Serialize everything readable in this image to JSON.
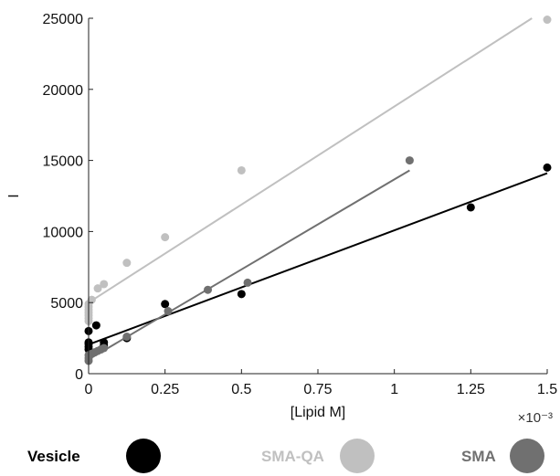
{
  "chart_data": {
    "type": "scatter",
    "xlabel": "[Lipid M]",
    "ylabel": "I",
    "x_multiplier": "×10⁻³",
    "xlim": [
      0,
      1.5
    ],
    "ylim": [
      0,
      25000
    ],
    "x_ticks": [
      "0",
      "0.25",
      "0.5",
      "0.75",
      "1",
      "1.25",
      "1.5"
    ],
    "y_ticks": [
      "0",
      "5000",
      "10000",
      "15000",
      "20000",
      "25000"
    ],
    "grid": false,
    "legend_position": "bottom",
    "series": [
      {
        "name": "Vesicle",
        "color": "#000000",
        "x": [
          0.0,
          0.0,
          0.0,
          0.0,
          0.0,
          0.025,
          0.05,
          0.05,
          0.125,
          0.25,
          0.5,
          1.25,
          1.5
        ],
        "y": [
          1700,
          1900,
          2100,
          2200,
          3000,
          3400,
          2000,
          2200,
          2500,
          4900,
          5600,
          11700,
          14500
        ],
        "fit": [
          [
            0,
            2050
          ],
          [
            1.5,
            14100
          ]
        ]
      },
      {
        "name": "SMA-QA",
        "color": "#c0c0c0",
        "x": [
          0.0,
          0.0,
          0.0,
          0.0,
          0.0,
          0.0,
          0.0,
          0.01,
          0.03,
          0.05,
          0.125,
          0.25,
          0.5,
          1.5
        ],
        "y": [
          3700,
          3900,
          4100,
          4300,
          4500,
          4700,
          4900,
          5200,
          6000,
          6300,
          7800,
          9600,
          14300,
          24900
        ],
        "fit": [
          [
            0,
            5000
          ],
          [
            1.45,
            25000
          ]
        ]
      },
      {
        "name": "SMA",
        "color": "#707070",
        "x": [
          0.0,
          0.0,
          0.0,
          0.01,
          0.02,
          0.03,
          0.04,
          0.05,
          0.125,
          0.26,
          0.39,
          0.52,
          1.05
        ],
        "y": [
          900,
          1100,
          1300,
          1400,
          1500,
          1600,
          1700,
          1800,
          2600,
          4400,
          5900,
          6400,
          15000
        ],
        "fit": [
          [
            0,
            1000
          ],
          [
            1.05,
            14300
          ]
        ]
      }
    ]
  }
}
